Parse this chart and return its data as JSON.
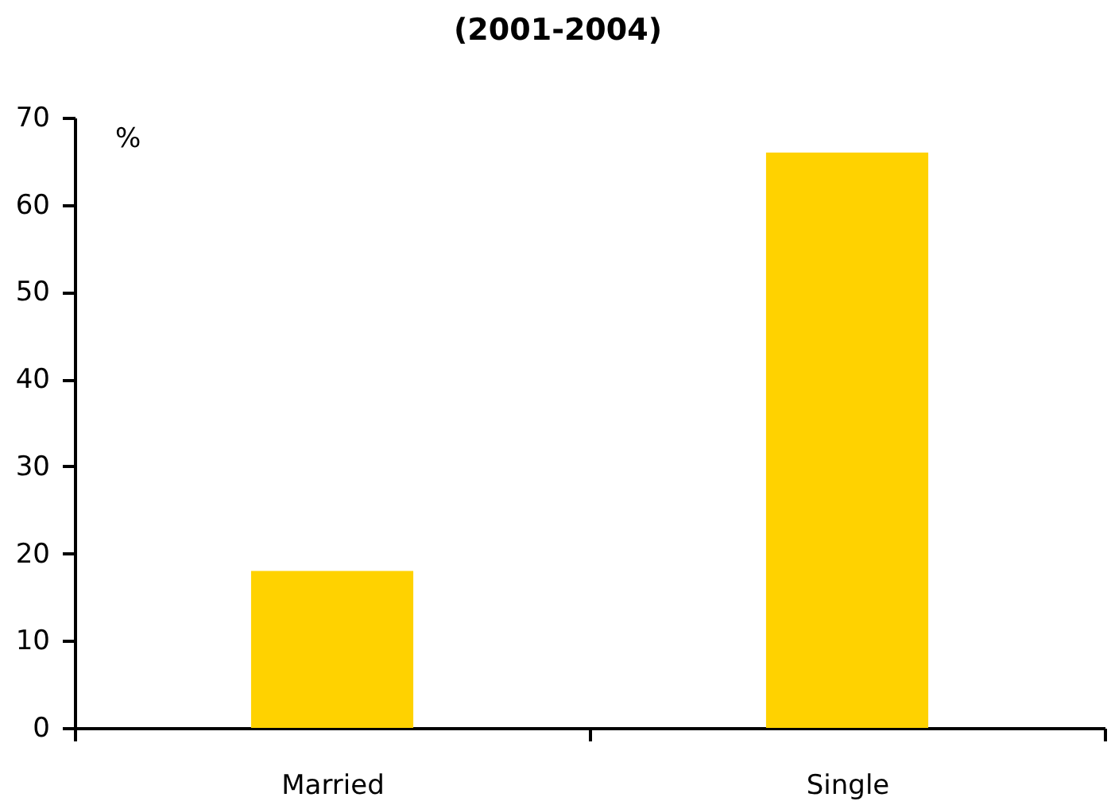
{
  "chart_data": {
    "type": "bar",
    "title": "(2001-2004)",
    "ylabel": "%",
    "categories": [
      "Married",
      "Single"
    ],
    "values": [
      18,
      66
    ],
    "color": "#ffd200",
    "ylim": [
      0,
      70
    ],
    "yticks": [
      0,
      10,
      20,
      30,
      40,
      50,
      60,
      70
    ]
  }
}
